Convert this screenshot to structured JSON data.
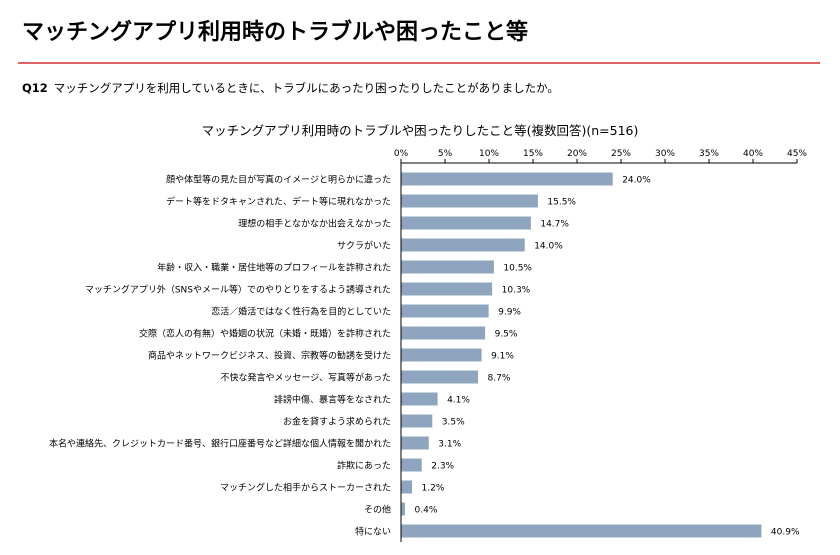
{
  "page": {
    "title": "マッチングアプリ利用時のトラブルや困ったこと等",
    "question_no": "Q12",
    "question_text": "マッチングアプリを利用しているときに、トラブルにあったり困ったりしたことがありましたか。"
  },
  "colors": {
    "bar": "#8fa4bf",
    "rule": "#e06262",
    "axis": "#000000"
  },
  "chart_data": {
    "type": "bar",
    "orientation": "horizontal",
    "title": "マッチングアプリ利用時のトラブルや困ったりしたこと等(複数回答)(n=516)",
    "xlim": [
      0,
      45
    ],
    "ticks": [
      0,
      5,
      10,
      15,
      20,
      25,
      30,
      35,
      40,
      45
    ],
    "tick_labels": [
      "0%",
      "5%",
      "10%",
      "15%",
      "20%",
      "25%",
      "30%",
      "35%",
      "40%",
      "45%"
    ],
    "grid": false,
    "categories": [
      "顔や体型等の見た目が写真のイメージと明らかに違った",
      "デート等をドタキャンされた、デート等に現れなかった",
      "理想の相手となかなか出会えなかった",
      "サクラがいた",
      "年齢・収入・職業・居住地等のプロフィールを詐称された",
      "マッチングアプリ外（SNSやメール等）でのやりとりをするよう誘導された",
      "恋活／婚活ではなく性行為を目的としていた",
      "交際（恋人の有無）や婚姻の状況（未婚・既婚）を詐称された",
      "商品やネットワークビジネス、投資、宗教等の勧誘を受けた",
      "不快な発言やメッセージ、写真等があった",
      "誹謗中傷、暴言等をなされた",
      "お金を貸すよう求められた",
      "本名や連絡先、クレジットカード番号、銀行口座番号など詳細な個人情報を聞かれた",
      "詐欺にあった",
      "マッチングした相手からストーカーされた",
      "その他",
      "特にない"
    ],
    "values": [
      24.0,
      15.5,
      14.7,
      14.0,
      10.5,
      10.3,
      9.9,
      9.5,
      9.1,
      8.7,
      4.1,
      3.5,
      3.1,
      2.3,
      1.2,
      0.4,
      40.9
    ],
    "value_labels": [
      "24.0%",
      "15.5%",
      "14.7%",
      "14.0%",
      "10.5%",
      "10.3%",
      "9.9%",
      "9.5%",
      "9.1%",
      "8.7%",
      "4.1%",
      "3.5%",
      "3.1%",
      "2.3%",
      "1.2%",
      "0.4%",
      "40.9%"
    ]
  }
}
